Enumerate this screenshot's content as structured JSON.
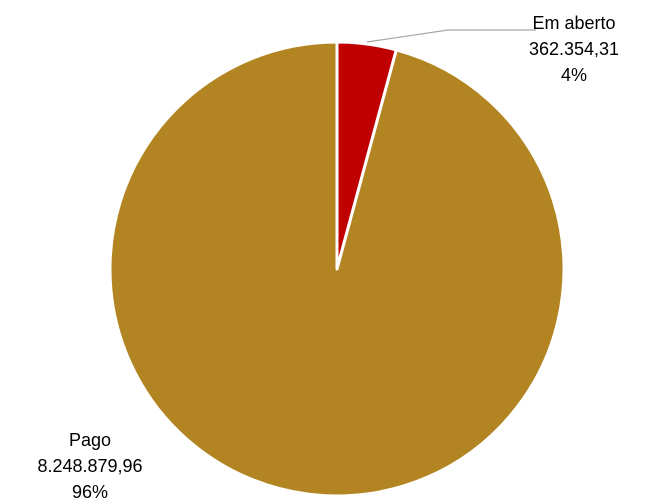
{
  "chart_data": {
    "type": "pie",
    "slices": [
      {
        "label": "Em aberto",
        "value_text": "362.354,31",
        "value": 362354.31,
        "percent_text": "4%",
        "color": "#C00000"
      },
      {
        "label": "Pago",
        "value_text": "8.248.879,96",
        "value": 8248879.96,
        "percent_text": "96%",
        "color": "#B38522"
      }
    ],
    "slice_border_color": "#FFFFFF",
    "leader_line_color": "#A6A6A6",
    "legend": "none"
  }
}
